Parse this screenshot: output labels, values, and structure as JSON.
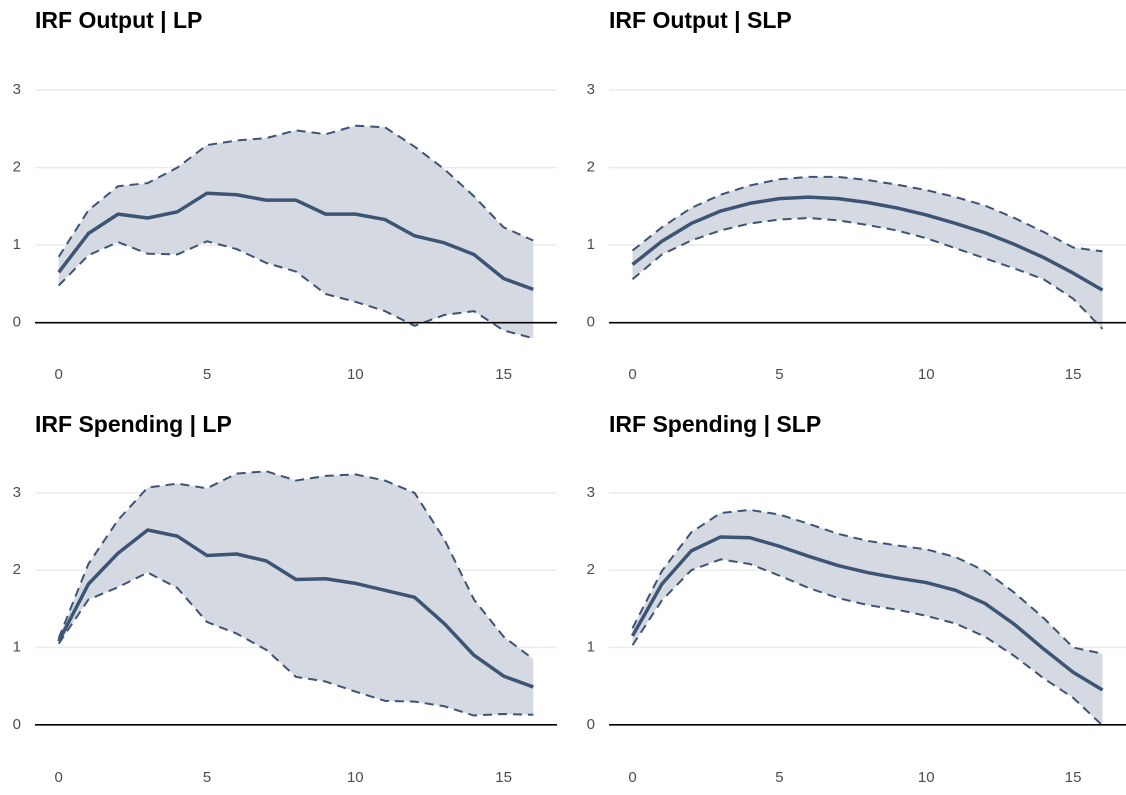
{
  "chart_data": [
    {
      "type": "line",
      "title": "IRF Output | LP",
      "x": [
        0,
        1,
        2,
        3,
        4,
        5,
        6,
        7,
        8,
        9,
        10,
        11,
        12,
        13,
        14,
        15,
        16
      ],
      "values": [
        0.65,
        1.15,
        1.4,
        1.35,
        1.43,
        1.67,
        1.65,
        1.58,
        1.58,
        1.4,
        1.4,
        1.33,
        1.12,
        1.03,
        0.88,
        0.57,
        0.43
      ],
      "upper": [
        0.85,
        1.45,
        1.76,
        1.8,
        2.0,
        2.29,
        2.35,
        2.38,
        2.48,
        2.43,
        2.54,
        2.52,
        2.27,
        1.98,
        1.63,
        1.23,
        1.06
      ],
      "lower": [
        0.48,
        0.87,
        1.04,
        0.89,
        0.88,
        1.05,
        0.95,
        0.77,
        0.66,
        0.37,
        0.27,
        0.15,
        -0.04,
        0.1,
        0.15,
        -0.1,
        -0.2
      ],
      "color": "#3d5475",
      "band_color": "#d5dae2",
      "hline": 0,
      "xlim": [
        -0.8,
        16.8
      ],
      "xticks": [
        0,
        5,
        10,
        15
      ],
      "ylim": [
        -0.3,
        3.4
      ],
      "yticks": [
        0,
        1,
        2,
        3
      ],
      "grid": true
    },
    {
      "type": "line",
      "title": "IRF Output | SLP",
      "x": [
        0,
        1,
        2,
        3,
        4,
        5,
        6,
        7,
        8,
        9,
        10,
        11,
        12,
        13,
        14,
        15,
        16
      ],
      "values": [
        0.75,
        1.05,
        1.28,
        1.44,
        1.54,
        1.6,
        1.62,
        1.6,
        1.55,
        1.48,
        1.39,
        1.28,
        1.16,
        1.01,
        0.84,
        0.64,
        0.42
      ],
      "upper": [
        0.93,
        1.23,
        1.48,
        1.65,
        1.77,
        1.85,
        1.88,
        1.88,
        1.84,
        1.78,
        1.71,
        1.62,
        1.51,
        1.35,
        1.17,
        0.97,
        0.92
      ],
      "lower": [
        0.56,
        0.88,
        1.06,
        1.19,
        1.28,
        1.33,
        1.35,
        1.32,
        1.26,
        1.19,
        1.09,
        0.96,
        0.83,
        0.7,
        0.56,
        0.31,
        -0.08
      ],
      "color": "#3d5475",
      "band_color": "#d5dae2",
      "hline": 0,
      "xlim": [
        -0.8,
        16.8
      ],
      "xticks": [
        0,
        5,
        10,
        15
      ],
      "ylim": [
        -0.3,
        3.4
      ],
      "yticks": [
        0,
        1,
        2,
        3
      ],
      "grid": true
    },
    {
      "type": "line",
      "title": "IRF Spending | LP",
      "x": [
        0,
        1,
        2,
        3,
        4,
        5,
        6,
        7,
        8,
        9,
        10,
        11,
        12,
        13,
        14,
        15,
        16
      ],
      "values": [
        1.08,
        1.82,
        2.22,
        2.52,
        2.44,
        2.19,
        2.21,
        2.12,
        1.88,
        1.89,
        1.83,
        1.74,
        1.65,
        1.31,
        0.9,
        0.63,
        0.49
      ],
      "upper": [
        1.12,
        2.08,
        2.65,
        3.07,
        3.12,
        3.06,
        3.25,
        3.28,
        3.16,
        3.22,
        3.24,
        3.16,
        3.0,
        2.4,
        1.62,
        1.14,
        0.85
      ],
      "lower": [
        1.05,
        1.62,
        1.78,
        1.97,
        1.77,
        1.33,
        1.18,
        0.97,
        0.62,
        0.56,
        0.43,
        0.31,
        0.3,
        0.24,
        0.12,
        0.14,
        0.13
      ],
      "color": "#3d5475",
      "band_color": "#d5dae2",
      "hline": 0,
      "xlim": [
        -0.8,
        16.8
      ],
      "xticks": [
        0,
        5,
        10,
        15
      ],
      "ylim": [
        -0.3,
        3.4
      ],
      "yticks": [
        0,
        1,
        2,
        3
      ],
      "grid": true
    },
    {
      "type": "line",
      "title": "IRF Spending | SLP",
      "x": [
        0,
        1,
        2,
        3,
        4,
        5,
        6,
        7,
        8,
        9,
        10,
        11,
        12,
        13,
        14,
        15,
        16
      ],
      "values": [
        1.15,
        1.82,
        2.25,
        2.43,
        2.42,
        2.31,
        2.18,
        2.06,
        1.97,
        1.9,
        1.84,
        1.74,
        1.57,
        1.3,
        0.98,
        0.68,
        0.45
      ],
      "upper": [
        1.25,
        1.99,
        2.49,
        2.74,
        2.78,
        2.72,
        2.6,
        2.47,
        2.38,
        2.32,
        2.27,
        2.17,
        1.99,
        1.71,
        1.38,
        1.0,
        0.92
      ],
      "lower": [
        1.03,
        1.61,
        2.0,
        2.14,
        2.08,
        1.93,
        1.77,
        1.64,
        1.55,
        1.49,
        1.41,
        1.31,
        1.14,
        0.89,
        0.6,
        0.35,
        -0.01
      ],
      "color": "#3d5475",
      "band_color": "#d5dae2",
      "hline": 0,
      "xlim": [
        -0.8,
        16.8
      ],
      "xticks": [
        0,
        5,
        10,
        15
      ],
      "ylim": [
        -0.3,
        3.4
      ],
      "yticks": [
        0,
        1,
        2,
        3
      ],
      "grid": true
    }
  ]
}
